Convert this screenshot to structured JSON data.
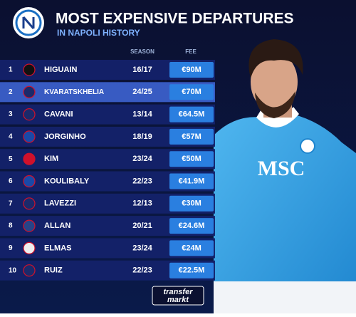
{
  "header": {
    "title": "MOST EXPENSIVE DEPARTURES",
    "subtitle": "IN NAPOLI HISTORY"
  },
  "table": {
    "columns": [
      "SEASON",
      "FEE"
    ],
    "rows": [
      {
        "rank": 1,
        "player": "HIGUAIN",
        "season": "16/17",
        "fee": "€90M"
      },
      {
        "rank": 2,
        "player": "KVARATSKHELIA",
        "season": "24/25",
        "fee": "€70M"
      },
      {
        "rank": 3,
        "player": "CAVANI",
        "season": "13/14",
        "fee": "€64.5M"
      },
      {
        "rank": 4,
        "player": "JORGINHO",
        "season": "18/19",
        "fee": "€57M"
      },
      {
        "rank": 5,
        "player": "KIM",
        "season": "23/24",
        "fee": "€50M"
      },
      {
        "rank": 6,
        "player": "KOULIBALY",
        "season": "22/23",
        "fee": "€41.9M"
      },
      {
        "rank": 7,
        "player": "LAVEZZI",
        "season": "12/13",
        "fee": "€30M"
      },
      {
        "rank": 8,
        "player": "ALLAN",
        "season": "20/21",
        "fee": "€24.6M"
      },
      {
        "rank": 9,
        "player": "ELMAS",
        "season": "23/24",
        "fee": "€24M"
      },
      {
        "rank": 10,
        "player": "RUIZ",
        "season": "22/23",
        "fee": "€22.5M"
      }
    ]
  },
  "photo": {
    "sponsor": "MSC"
  },
  "footer": {
    "logo_top": "transfer",
    "logo_bottom": "markt"
  }
}
